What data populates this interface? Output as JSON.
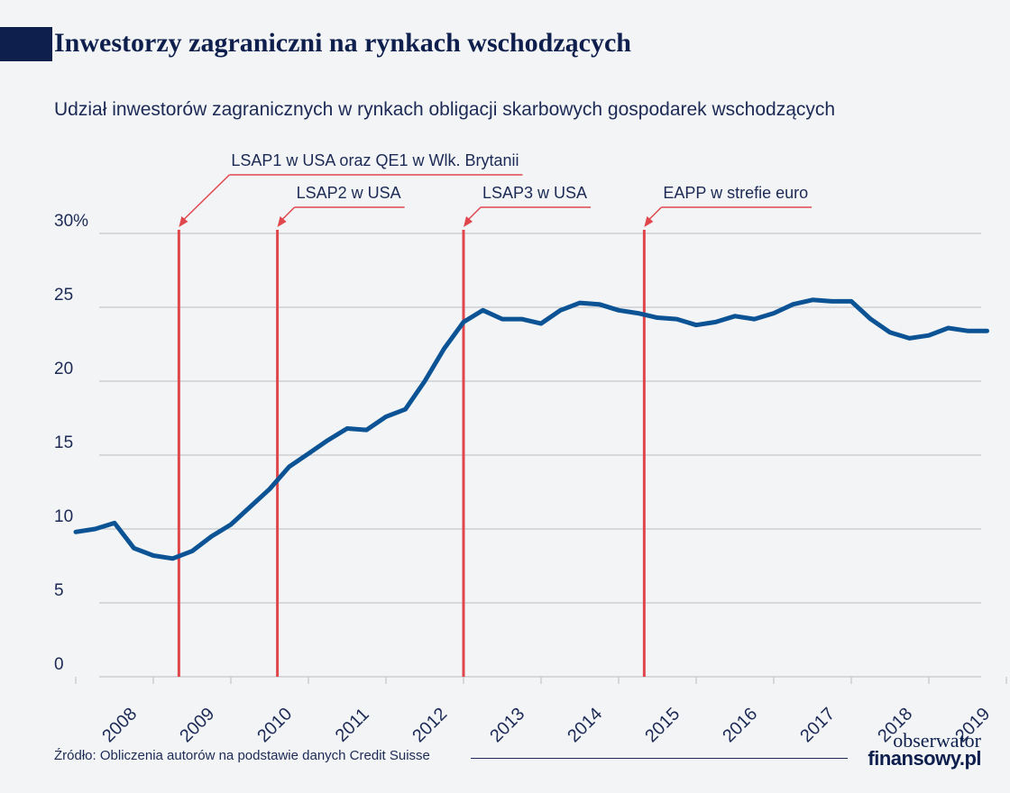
{
  "header": {
    "title": "Inwestorzy zagraniczni na rynkach wschodzących",
    "subtitle": "Udział inwestorów zagranicznych w rynkach obligacji skarbowych gospodarek wschodzących"
  },
  "footer": {
    "source": "Źródło: Obliczenia autorów na podstawie danych Credit Suisse",
    "logo_top": "obserwator",
    "logo_bottom": "finansowy.pl"
  },
  "colors": {
    "line": "#0b5394",
    "events": "#e0474c",
    "grid": "#b9bdc3",
    "text": "#1c2a55"
  },
  "chart_data": {
    "type": "line",
    "title": "Udział inwestorów zagranicznych w rynkach obligacji skarbowych gospodarek wschodzących",
    "ylim": [
      0,
      30
    ],
    "yticks": [
      0,
      5,
      10,
      15,
      20,
      25,
      30
    ],
    "ytick_labels": [
      "0",
      "5",
      "10",
      "15",
      "20",
      "25",
      "30%"
    ],
    "xlim": [
      2007.5,
      2019.5
    ],
    "xtick_labels": [
      "2008",
      "2009",
      "2010",
      "2011",
      "2012",
      "2013",
      "2014",
      "2015",
      "2016",
      "2017",
      "2018",
      "2019"
    ],
    "grid": true,
    "series": [
      {
        "x": [
          2007.5,
          2007.75,
          2008.0,
          2008.25,
          2008.5,
          2008.75,
          2009.0,
          2009.25,
          2009.5,
          2009.75,
          2010.0,
          2010.25,
          2010.5,
          2010.75,
          2011.0,
          2011.25,
          2011.5,
          2011.75,
          2012.0,
          2012.25,
          2012.5,
          2012.75,
          2013.0,
          2013.25,
          2013.5,
          2013.75,
          2014.0,
          2014.25,
          2014.5,
          2014.75,
          2015.0,
          2015.25,
          2015.5,
          2015.75,
          2016.0,
          2016.25,
          2016.5,
          2016.75,
          2017.0,
          2017.25,
          2017.5,
          2017.75,
          2018.0,
          2018.25,
          2018.5,
          2018.75,
          2019.0,
          2019.25
        ],
        "values": [
          9.8,
          10.0,
          10.4,
          8.7,
          8.2,
          8.0,
          8.5,
          9.5,
          10.3,
          11.5,
          12.7,
          14.2,
          15.1,
          16.0,
          16.8,
          16.7,
          17.6,
          18.1,
          20.0,
          22.2,
          24.0,
          24.8,
          24.2,
          24.2,
          23.9,
          24.8,
          25.3,
          25.2,
          24.8,
          24.6,
          24.3,
          24.2,
          23.8,
          24.0,
          24.4,
          24.2,
          24.6,
          25.2,
          25.5,
          25.4,
          25.4,
          24.2,
          23.3,
          22.9,
          23.1,
          23.6,
          23.4,
          23.4
        ]
      }
    ],
    "events": [
      {
        "x": 2008.83,
        "label": "LSAP1 w USA oraz QE1 w Wlk. Brytanii"
      },
      {
        "x": 2010.1,
        "label": "LSAP2 w USA"
      },
      {
        "x": 2012.5,
        "label": "LSAP3 w USA"
      },
      {
        "x": 2014.83,
        "label": "EAPP w strefie euro"
      }
    ]
  }
}
